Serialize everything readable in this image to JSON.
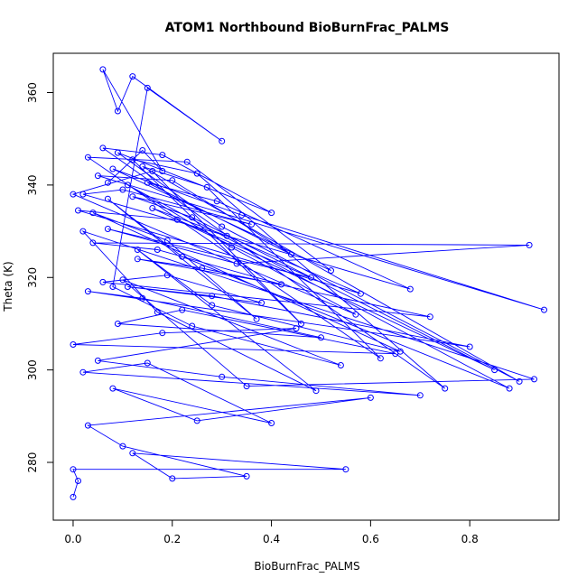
{
  "chart_data": {
    "type": "line",
    "title": "ATOM1 Northbound BioBurnFrac_PALMS",
    "xlabel": "BioBurnFrac_PALMS",
    "ylabel": "Theta (K)",
    "xlim": [
      -0.04,
      0.98
    ],
    "ylim": [
      267.5,
      368.5
    ],
    "xticks": [
      0.0,
      0.2,
      0.4,
      0.6,
      0.8
    ],
    "xtick_labels": [
      "0.0",
      "0.2",
      "0.4",
      "0.6",
      "0.8"
    ],
    "yticks": [
      280,
      300,
      320,
      340,
      360
    ],
    "ytick_labels": [
      "280",
      "300",
      "320",
      "340",
      "360"
    ],
    "series_color": "#0000ff",
    "markers": "open-circle",
    "grid": false,
    "series": [
      {
        "x": [
          0.0,
          0.01,
          0.0,
          0.55,
          0.12,
          0.2,
          0.35,
          0.1,
          0.03,
          0.6,
          0.25,
          0.08,
          0.4,
          0.15,
          0.02,
          0.7,
          0.3,
          0.05,
          0.45,
          0.18,
          0.0,
          0.65,
          0.22,
          0.09,
          0.5,
          0.14,
          0.03,
          0.8,
          0.28,
          0.11,
          0.38,
          0.19,
          0.06,
          0.72,
          0.26,
          0.13,
          0.42,
          0.17,
          0.04,
          0.92,
          0.33,
          0.07,
          0.48,
          0.21,
          0.01,
          0.58,
          0.31,
          0.16,
          0.85,
          0.24,
          0.12,
          0.36,
          0.1,
          0.02,
          0.68,
          0.29,
          0.15,
          0.44,
          0.2,
          0.05,
          0.95,
          0.34,
          0.08,
          0.52,
          0.23,
          0.03,
          0.62,
          0.27,
          0.14,
          0.9,
          0.3,
          0.09,
          0.4,
          0.18,
          0.06,
          0.75,
          0.25,
          0.12,
          0.46,
          0.16,
          0.0,
          0.57,
          0.32,
          0.11,
          0.88,
          0.22,
          0.07,
          0.37,
          0.19,
          0.04,
          0.66,
          0.28,
          0.13,
          0.49,
          0.17,
          0.02,
          0.93,
          0.35,
          0.1,
          0.54,
          0.24,
          0.08,
          0.15,
          0.3,
          0.12,
          0.09,
          0.06,
          0.18,
          0.14,
          0.07
        ],
        "y": [
          272.5,
          276.0,
          278.5,
          278.5,
          282.0,
          276.5,
          277.0,
          283.5,
          288.0,
          294.0,
          289.0,
          296.0,
          288.5,
          301.5,
          299.5,
          294.5,
          298.5,
          302.0,
          309.0,
          308.0,
          305.5,
          303.5,
          313.0,
          310.0,
          307.0,
          315.5,
          317.0,
          305.0,
          316.0,
          318.0,
          314.5,
          320.5,
          319.0,
          311.5,
          322.0,
          324.0,
          318.5,
          326.0,
          327.5,
          327.0,
          323.0,
          330.5,
          320.0,
          332.5,
          334.5,
          316.5,
          329.0,
          335.0,
          300.0,
          333.0,
          337.5,
          331.5,
          339.0,
          338.0,
          317.5,
          336.5,
          340.5,
          325.0,
          341.0,
          342.0,
          313.0,
          333.5,
          343.5,
          321.5,
          345.0,
          346.0,
          302.5,
          339.5,
          344.0,
          297.5,
          331.0,
          347.0,
          334.0,
          346.5,
          348.0,
          296.0,
          342.5,
          345.5,
          310.0,
          343.0,
          338.0,
          312.0,
          326.5,
          340.0,
          296.0,
          324.5,
          337.0,
          311.0,
          328.0,
          334.0,
          304.0,
          314.0,
          326.0,
          295.5,
          312.5,
          330.0,
          298.0,
          296.5,
          319.5,
          301.0,
          309.5,
          318.0,
          361.0,
          349.5,
          363.5,
          356.0,
          365.0,
          343.0,
          347.5,
          340.5
        ]
      }
    ]
  }
}
